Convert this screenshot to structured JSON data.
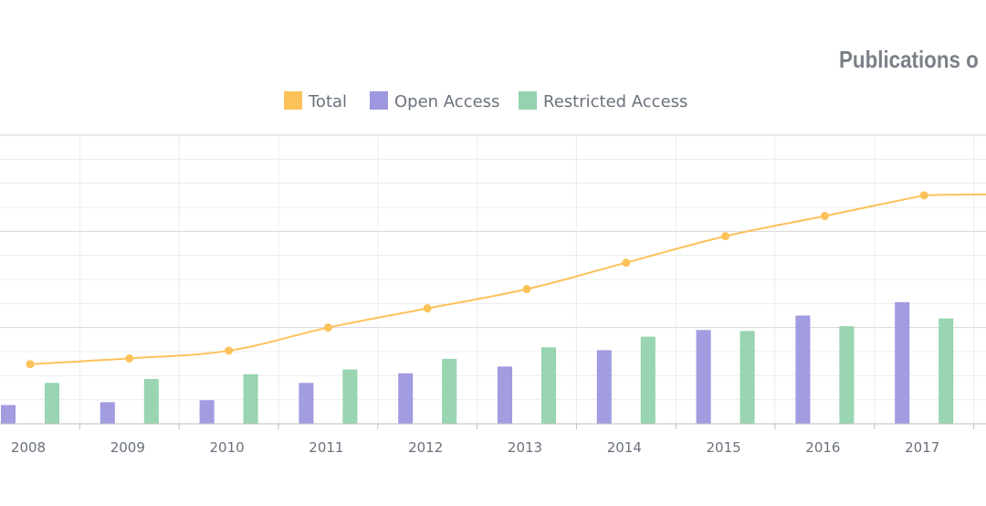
{
  "chart_data": {
    "type": "bar",
    "title": "Publications o",
    "categories": [
      "2008",
      "2009",
      "2010",
      "2011",
      "2012",
      "2013",
      "2014",
      "2015",
      "2016",
      "2017"
    ],
    "series": [
      {
        "name": "Total",
        "type": "line",
        "color": "#fcc259",
        "values": [
          1.24,
          1.36,
          1.52,
          2.0,
          2.4,
          2.8,
          3.35,
          3.9,
          4.32,
          4.75
        ]
      },
      {
        "name": "Open Access",
        "type": "bar",
        "color": "#9d98df",
        "values": [
          0.38,
          0.44,
          0.48,
          0.84,
          1.04,
          1.18,
          1.52,
          1.94,
          2.24,
          2.52
        ]
      },
      {
        "name": "Restricted Access",
        "type": "bar",
        "color": "#94d3ad",
        "values": [
          0.84,
          0.92,
          1.02,
          1.12,
          1.34,
          1.58,
          1.8,
          1.92,
          2.02,
          2.18
        ]
      }
    ],
    "ylim": [
      0,
      6
    ],
    "grid": true,
    "legend_position": "top-center"
  }
}
